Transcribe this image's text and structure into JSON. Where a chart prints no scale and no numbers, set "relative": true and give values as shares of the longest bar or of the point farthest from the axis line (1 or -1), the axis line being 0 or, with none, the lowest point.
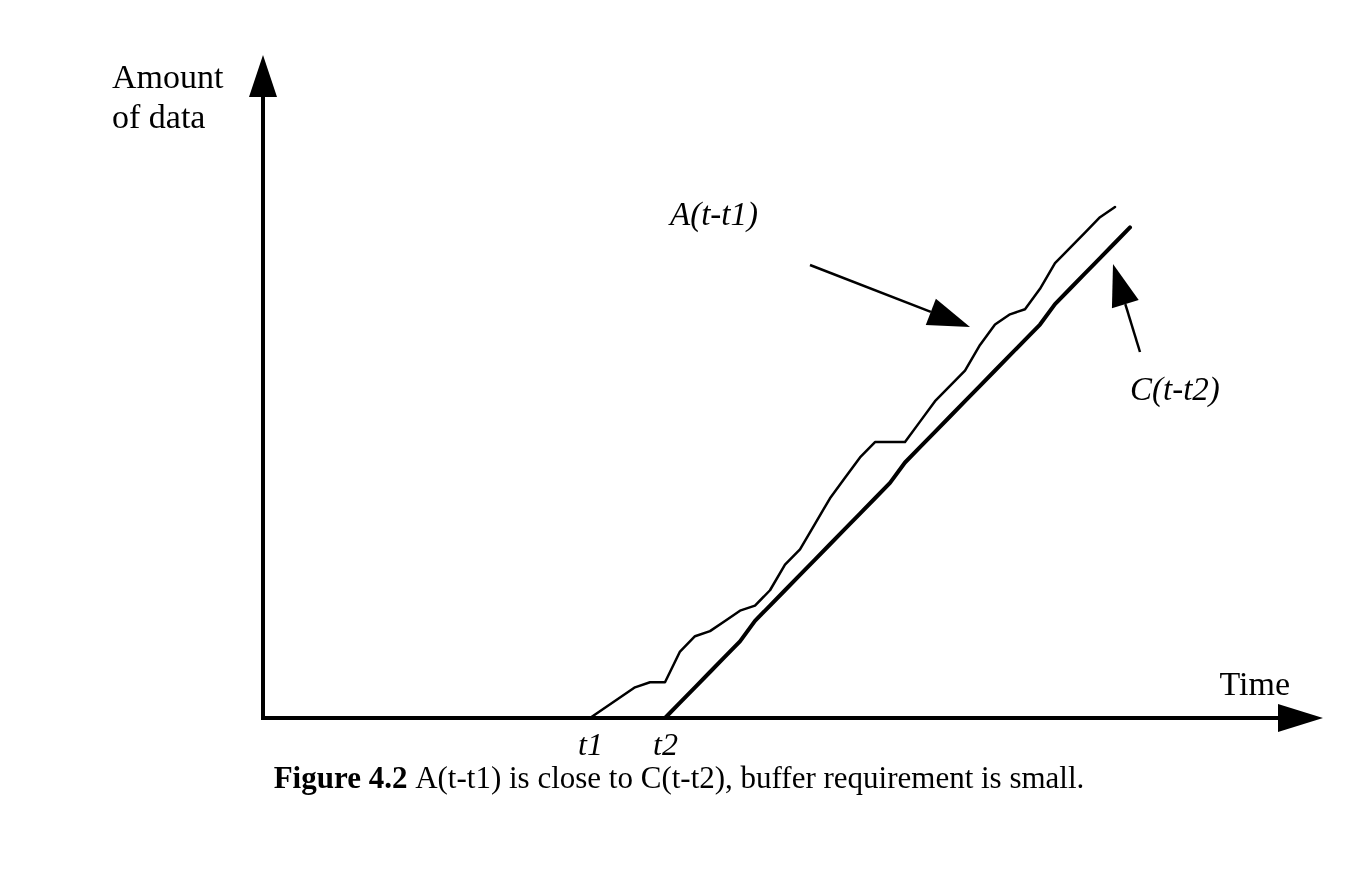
{
  "chart_data": {
    "type": "line",
    "relative": true,
    "xlabel": "Time",
    "ylabel": "Amount of data",
    "categories": [
      null,
      null,
      null,
      null,
      null,
      null,
      null,
      null,
      null,
      null,
      null,
      null,
      null,
      null,
      null,
      null,
      null,
      null,
      null,
      null,
      null,
      "t1",
      null,
      null,
      null,
      null,
      "t2",
      null,
      null,
      null,
      null,
      null,
      null,
      null,
      null,
      null,
      null,
      null,
      null,
      null,
      null,
      null,
      null,
      null,
      null,
      null,
      null,
      null,
      null,
      null,
      null,
      null,
      null,
      null,
      null,
      null,
      null,
      null,
      null,
      null,
      null,
      null,
      null,
      null,
      null,
      null,
      null,
      null,
      null,
      null
    ],
    "grid": false,
    "marker": "none",
    "line_style": "solid",
    "series": [
      {
        "color": "#000000",
        "values": [
          null,
          null,
          null,
          null,
          null,
          null,
          null,
          null,
          null,
          null,
          null,
          null,
          null,
          null,
          null,
          null,
          null,
          null,
          null,
          null,
          null,
          0,
          0.02,
          0.04,
          0.06,
          0.07,
          0.07,
          0.13,
          0.16,
          0.17,
          0.19,
          0.21,
          0.22,
          0.25,
          0.3,
          0.33,
          0.38,
          0.43,
          0.47,
          0.51,
          0.54,
          0.54,
          0.54,
          0.58,
          0.62,
          0.65,
          0.68,
          0.73,
          0.77,
          0.79,
          0.8,
          0.84,
          0.89,
          0.92,
          0.95,
          0.98,
          1,
          null,
          null,
          null,
          null,
          null,
          null,
          null,
          null,
          null,
          null,
          null,
          null,
          null
        ]
      },
      {
        "color": "#000000",
        "values": [
          null,
          null,
          null,
          null,
          null,
          null,
          null,
          null,
          null,
          null,
          null,
          null,
          null,
          null,
          null,
          null,
          null,
          null,
          null,
          null,
          null,
          null,
          null,
          null,
          null,
          null,
          0,
          0.03,
          0.06,
          0.09,
          0.12,
          0.15,
          0.19,
          0.22,
          0.25,
          0.28,
          0.31,
          0.34,
          0.37,
          0.4,
          0.43,
          0.46,
          0.5,
          0.53,
          0.56,
          0.59,
          0.62,
          0.65,
          0.68,
          0.71,
          0.74,
          0.77,
          0.81,
          0.84,
          0.87,
          0.9,
          0.93,
          0.96,
          null,
          null,
          null,
          null,
          null,
          null,
          null,
          null,
          null,
          null,
          null,
          null
        ]
      }
    ],
    "annotations": [
      "A(t-t1)",
      "C(t-t2)",
      "Figure 4.2 A(t-t1) is close to C(t-t2), buffer requirement is small."
    ]
  }
}
